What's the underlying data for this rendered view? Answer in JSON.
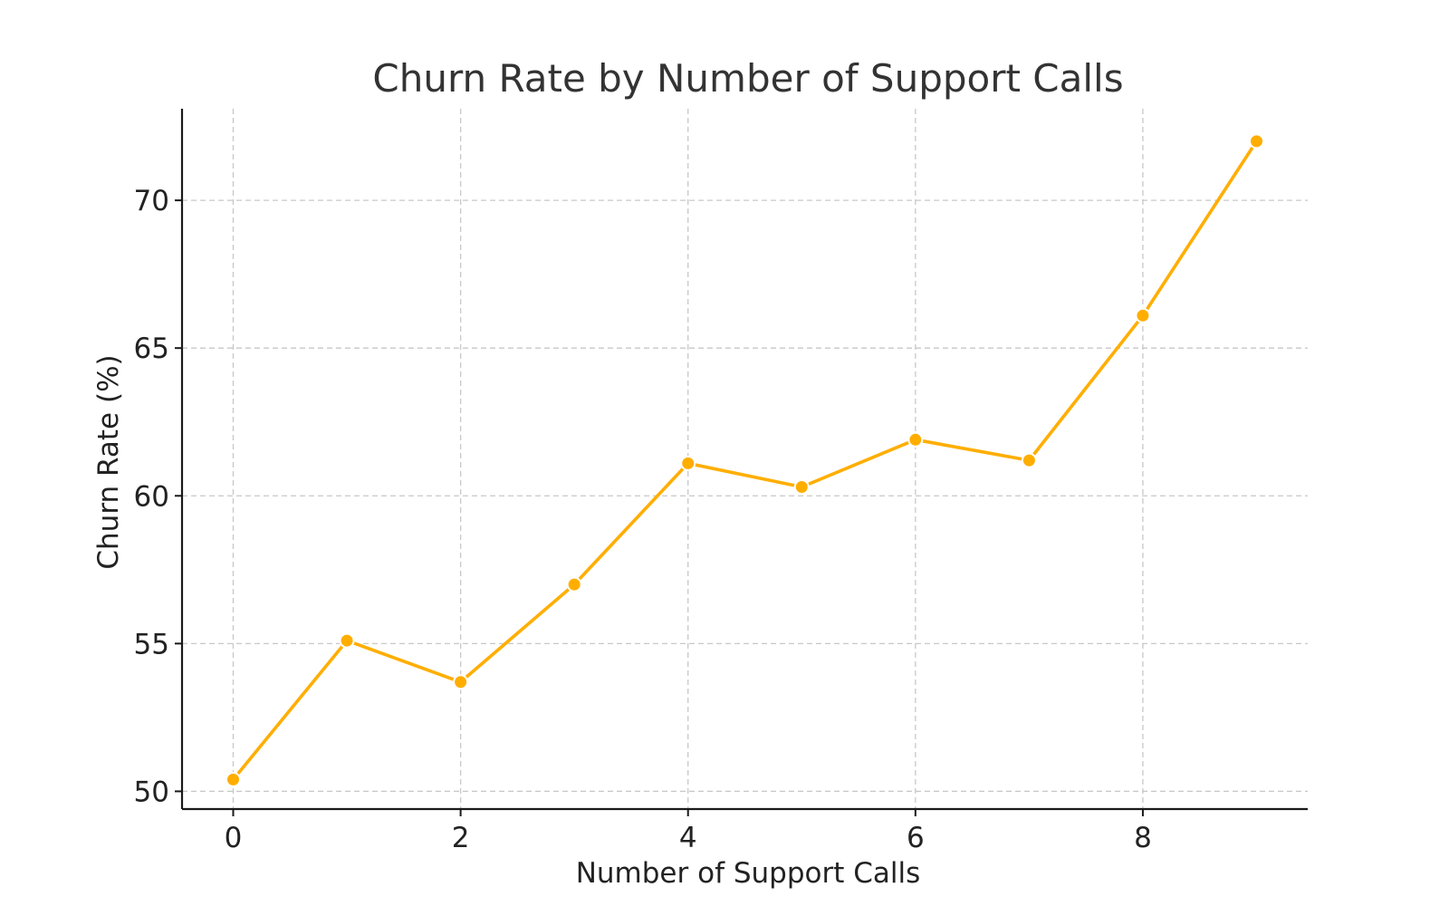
{
  "chart_data": {
    "type": "line",
    "title": "Churn Rate by Number of Support Calls",
    "xlabel": "Number of Support Calls",
    "ylabel": "Churn Rate (%)",
    "x": [
      0,
      1,
      2,
      3,
      4,
      5,
      6,
      7,
      8,
      9
    ],
    "series": [
      {
        "values": [
          50.4,
          55.1,
          53.7,
          57.0,
          61.1,
          60.3,
          61.9,
          61.2,
          66.1,
          72.0
        ]
      }
    ],
    "xlim": [
      -0.45,
      9.45
    ],
    "ylim": [
      49.4,
      73.1
    ],
    "xticks": [
      0,
      2,
      4,
      6,
      8
    ],
    "yticks": [
      50,
      55,
      60,
      65,
      70
    ],
    "grid": true,
    "legend": "none",
    "line_color": "#FFAE00"
  }
}
